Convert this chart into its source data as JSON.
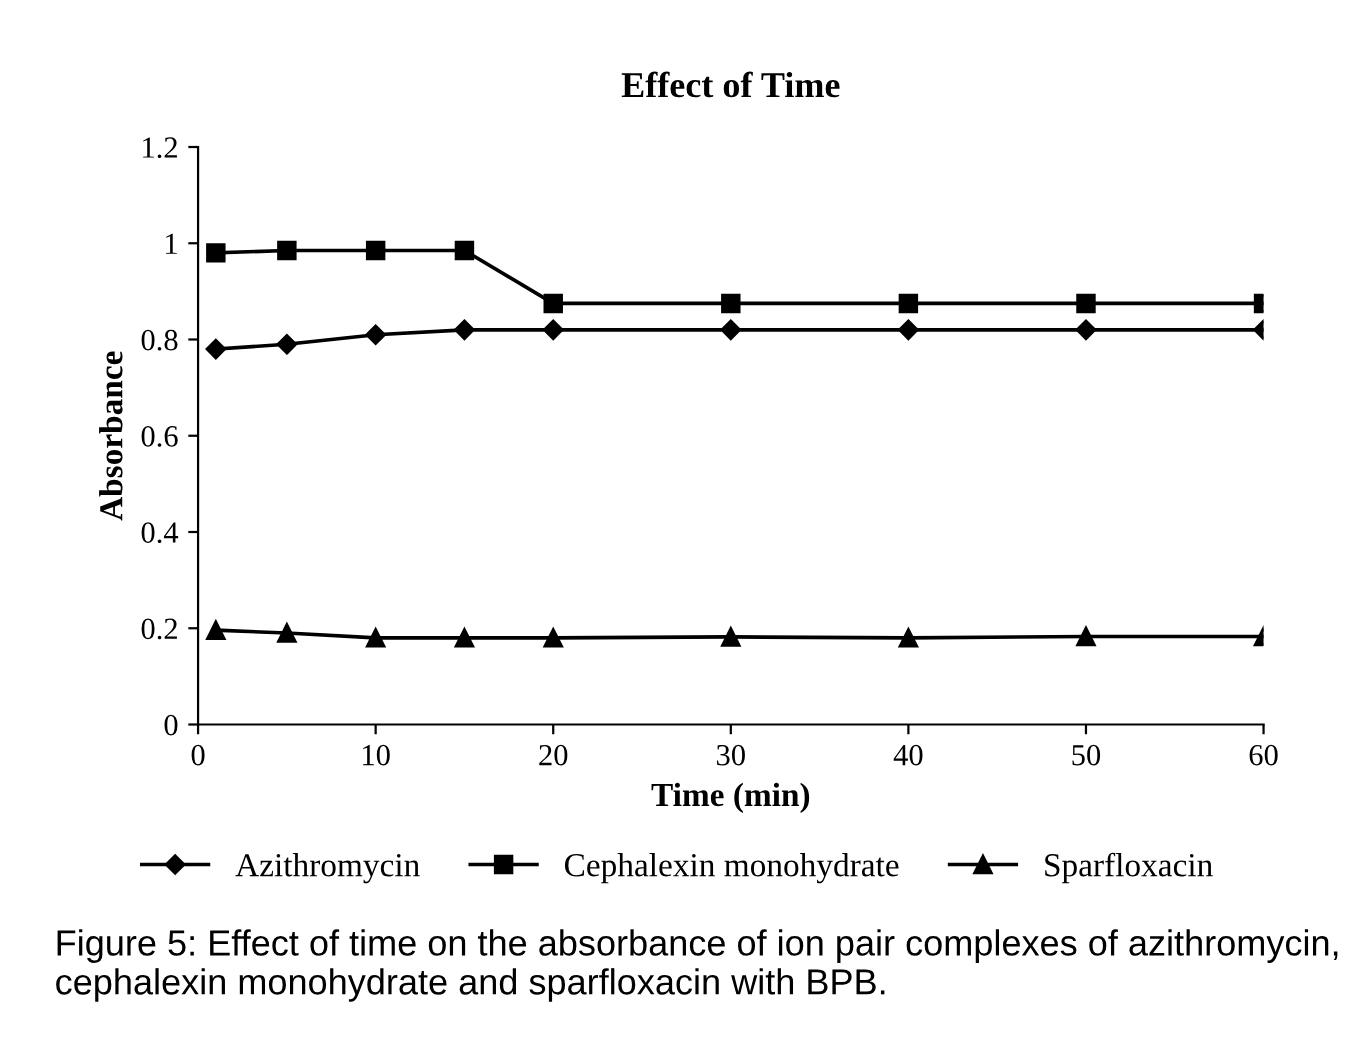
{
  "chart_data": {
    "type": "line",
    "title": "Effect of Time",
    "xlabel": "Time (min)",
    "ylabel": "Absorbance",
    "x": [
      1,
      5,
      10,
      15,
      20,
      30,
      40,
      50,
      60
    ],
    "series": [
      {
        "name": "Azithromycin",
        "color": "#000000",
        "marker": "diamond",
        "values": [
          0.78,
          0.79,
          0.81,
          0.82,
          0.82,
          0.82,
          0.82,
          0.82,
          0.82
        ]
      },
      {
        "name": "Cephalexin monohydrate",
        "color": "#000000",
        "marker": "square",
        "values": [
          0.98,
          0.985,
          0.985,
          0.985,
          0.875,
          0.875,
          0.875,
          0.875,
          0.875
        ]
      },
      {
        "name": "Sparfloxacin",
        "color": "#000000",
        "marker": "triangle",
        "values": [
          0.196,
          0.19,
          0.18,
          0.18,
          0.18,
          0.182,
          0.18,
          0.183,
          0.183
        ]
      }
    ],
    "xlim": [
      0,
      60
    ],
    "xticks": [
      0,
      10,
      20,
      30,
      40,
      50,
      60
    ],
    "ylim": [
      0,
      1.2
    ],
    "yticks": [
      0,
      0.2,
      0.4,
      0.6,
      0.8,
      1,
      1.2
    ],
    "grid": false,
    "legend": "bottom",
    "annotations": [
      "Figure 5: Effect of time on the absorbance of ion pair complexes of azithromycin, cephalexin monohydrate and sparfloxacin with BPB."
    ]
  }
}
